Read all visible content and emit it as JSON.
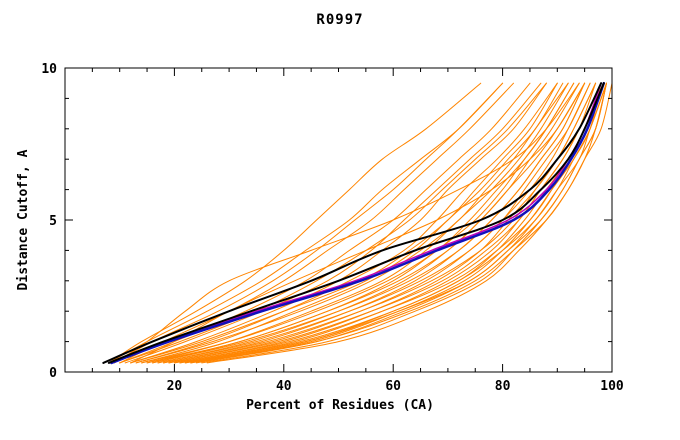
{
  "chart_data": {
    "type": "line",
    "title": "R0997",
    "xlabel": "Percent of Residues (CA)",
    "ylabel": "Distance Cutoff, A",
    "xlim": [
      0,
      100
    ],
    "ylim": [
      0,
      10
    ],
    "x_ticks_major": [
      20,
      40,
      60,
      80,
      100
    ],
    "x_ticks_minor_step": 5,
    "y_ticks_major": [
      0,
      5,
      10
    ],
    "y_ticks_minor_step": 1,
    "grid": false,
    "legend": "none",
    "frame": "box",
    "y_levels": [
      0.3,
      1,
      2,
      3,
      4,
      5,
      6,
      7,
      8,
      9.5
    ],
    "series": [
      {
        "name": "orange-models",
        "color": "#ff8500",
        "stroke_width": 1,
        "curves": [
          [
            8,
            14,
            24,
            33,
            40,
            46,
            52,
            58,
            66,
            76
          ],
          [
            9,
            16,
            28,
            38,
            46,
            53,
            60,
            66,
            72,
            80
          ],
          [
            10,
            18,
            30,
            40,
            48,
            56,
            62,
            68,
            74,
            82
          ],
          [
            8,
            15,
            26,
            36,
            44,
            52,
            58,
            65,
            72,
            80
          ],
          [
            10,
            20,
            33,
            44,
            52,
            60,
            66,
            72,
            78,
            85
          ],
          [
            11,
            22,
            36,
            48,
            56,
            62,
            68,
            74,
            80,
            87
          ],
          [
            12,
            24,
            38,
            50,
            58,
            65,
            70,
            76,
            82,
            88
          ],
          [
            10,
            21,
            35,
            46,
            55,
            63,
            69,
            75,
            81,
            88
          ],
          [
            13,
            26,
            40,
            52,
            62,
            68,
            73,
            79,
            84,
            90
          ],
          [
            14,
            28,
            42,
            55,
            64,
            70,
            76,
            81,
            86,
            91
          ],
          [
            12,
            25,
            40,
            54,
            63,
            70,
            75,
            80,
            85,
            90
          ],
          [
            15,
            30,
            45,
            58,
            66,
            72,
            78,
            83,
            87,
            92
          ],
          [
            13,
            27,
            43,
            56,
            65,
            72,
            77,
            82,
            86,
            92
          ],
          [
            16,
            32,
            48,
            60,
            68,
            75,
            80,
            84,
            88,
            93
          ],
          [
            14,
            30,
            46,
            59,
            68,
            74,
            79,
            84,
            88,
            93
          ],
          [
            17,
            34,
            50,
            62,
            70,
            76,
            81,
            85,
            89,
            94
          ],
          [
            15,
            32,
            48,
            61,
            70,
            76,
            81,
            86,
            90,
            95
          ],
          [
            18,
            36,
            52,
            64,
            72,
            78,
            83,
            87,
            91,
            95
          ],
          [
            16,
            33,
            50,
            63,
            72,
            78,
            83,
            87,
            91,
            95
          ],
          [
            19,
            38,
            54,
            66,
            74,
            80,
            84,
            88,
            92,
            96
          ],
          [
            17,
            35,
            52,
            65,
            74,
            80,
            85,
            89,
            92,
            96
          ],
          [
            20,
            40,
            56,
            68,
            76,
            81,
            86,
            90,
            93,
            97
          ],
          [
            18,
            37,
            54,
            67,
            76,
            82,
            86,
            90,
            93,
            97
          ],
          [
            21,
            42,
            58,
            70,
            78,
            83,
            87,
            91,
            94,
            97
          ],
          [
            19,
            39,
            56,
            69,
            77,
            83,
            87,
            91,
            94,
            98
          ],
          [
            22,
            44,
            60,
            72,
            79,
            84,
            88,
            92,
            95,
            98
          ],
          [
            20,
            41,
            58,
            71,
            79,
            85,
            89,
            92,
            95,
            98
          ],
          [
            23,
            45,
            61,
            73,
            80,
            85,
            89,
            93,
            96,
            98
          ],
          [
            21,
            43,
            60,
            72,
            80,
            86,
            90,
            93,
            96,
            99
          ],
          [
            24,
            46,
            62,
            74,
            81,
            86,
            90,
            94,
            96,
            99
          ],
          [
            22,
            44,
            61,
            74,
            81,
            87,
            91,
            94,
            97,
            99
          ],
          [
            25,
            48,
            64,
            76,
            82,
            87,
            91,
            94,
            97,
            99
          ],
          [
            23,
            46,
            63,
            75,
            82,
            88,
            92,
            95,
            97,
            99
          ],
          [
            26,
            50,
            66,
            77,
            83,
            88,
            92,
            95,
            98,
            100
          ],
          [
            12,
            20,
            30,
            42,
            55,
            68,
            78,
            85,
            90,
            95
          ],
          [
            9,
            15,
            22,
            30,
            45,
            60,
            72,
            82,
            88,
            94
          ]
        ]
      },
      {
        "name": "magenta-curve",
        "color": "#bb00bb",
        "stroke_width": 1.5,
        "curves": [
          [
            8,
            19,
            35,
            53,
            67,
            81,
            88,
            92,
            95,
            98
          ]
        ]
      },
      {
        "name": "blue-curve",
        "color": "#1111bb",
        "stroke_width": 2.5,
        "curves": [
          [
            8.5,
            19,
            36,
            54,
            68,
            82,
            88.5,
            92.5,
            95.5,
            98.5
          ]
        ]
      },
      {
        "name": "black-curve-1",
        "color": "#000000",
        "stroke_width": 2,
        "curves": [
          [
            7,
            16,
            30,
            45,
            58,
            76,
            85,
            90,
            94,
            98
          ]
        ]
      },
      {
        "name": "black-curve-2",
        "color": "#000000",
        "stroke_width": 2,
        "curves": [
          [
            8,
            18,
            34,
            50,
            64,
            80,
            87,
            92,
            95,
            98.5
          ]
        ]
      }
    ]
  }
}
